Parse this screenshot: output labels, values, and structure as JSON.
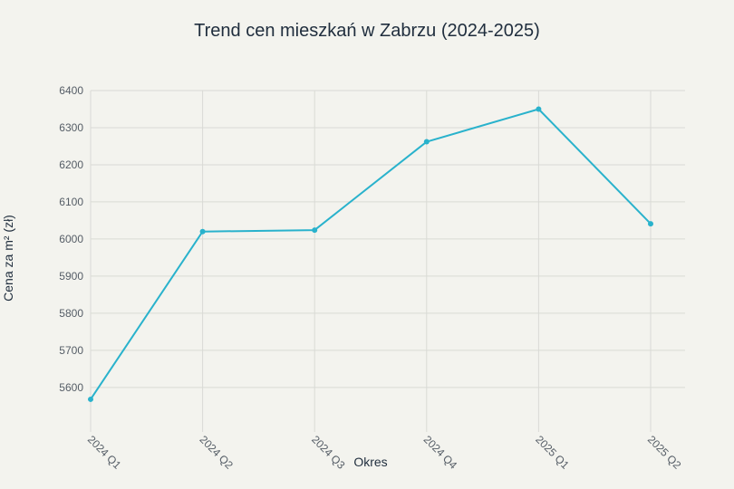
{
  "chart_data": {
    "type": "line",
    "title": "Trend cen mieszkań w Zabrzu (2024-2025)",
    "xlabel": "Okres",
    "ylabel": "Cena za m² (zł)",
    "categories": [
      "2024 Q1",
      "2024 Q2",
      "2024 Q3",
      "2024 Q4",
      "2025 Q1",
      "2025 Q2"
    ],
    "series": [
      {
        "values": [
          5568,
          6020,
          6024,
          6262,
          6350,
          6041
        ]
      }
    ],
    "ylim": [
      5480,
      6400
    ],
    "yticks": [
      5600,
      5700,
      5800,
      5900,
      6000,
      6100,
      6200,
      6300,
      6400
    ],
    "grid": true,
    "legend": "none",
    "colors": {
      "line": "#29b2cc",
      "background": "#f3f3ee",
      "grid": "#d9dad5"
    }
  }
}
